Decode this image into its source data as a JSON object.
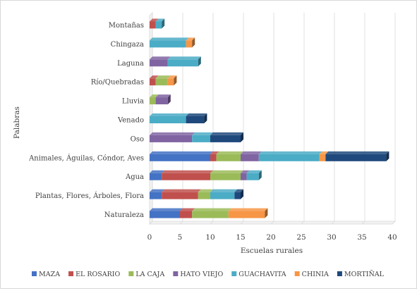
{
  "chart_data": {
    "type": "bar",
    "orientation": "horizontal",
    "stacked": true,
    "three_d": true,
    "categories": [
      "Naturaleza",
      "Plantas, Flores, Árboles, Flora",
      "Agua",
      "Animales, Águilas, Cóndor, Aves",
      "Oso",
      "Venado",
      "Lluvia",
      "Río/Quebradas",
      "Laguna",
      "Chingaza",
      "Montañas"
    ],
    "series": [
      {
        "name": "MAZA",
        "color": "#4472c4",
        "values": [
          5,
          2,
          2,
          10,
          0,
          0,
          0,
          0,
          0,
          0,
          0
        ]
      },
      {
        "name": "EL ROSARIO",
        "color": "#c0504d",
        "values": [
          2,
          6,
          8,
          1,
          0,
          0,
          0,
          1,
          0,
          0,
          1
        ]
      },
      {
        "name": "LA CAJA",
        "color": "#9bbb59",
        "values": [
          6,
          2,
          5,
          4,
          0,
          0,
          1,
          2,
          0,
          0,
          0
        ]
      },
      {
        "name": "HATO VIEJO",
        "color": "#8064a2",
        "values": [
          0,
          0,
          1,
          3,
          7,
          0,
          2,
          0,
          3,
          0,
          0
        ]
      },
      {
        "name": "GUACHAVITA",
        "color": "#4bacc6",
        "values": [
          0,
          4,
          2,
          10,
          3,
          6,
          0,
          0,
          5,
          6,
          1
        ]
      },
      {
        "name": "CHINIA",
        "color": "#f79646",
        "values": [
          6,
          0,
          0,
          1,
          0,
          0,
          0,
          1,
          0,
          1,
          0
        ]
      },
      {
        "name": "MORTIÑAL",
        "color": "#1f497d",
        "values": [
          0,
          1,
          0,
          10,
          5,
          3,
          0,
          0,
          0,
          0,
          0
        ]
      }
    ],
    "xlabel": "Escuelas rurales",
    "ylabel": "Palabras",
    "xlim": [
      0,
      40
    ],
    "xticks": [
      0,
      5,
      10,
      15,
      20,
      25,
      30,
      35,
      40
    ],
    "grid": true,
    "legend": "bottom"
  }
}
